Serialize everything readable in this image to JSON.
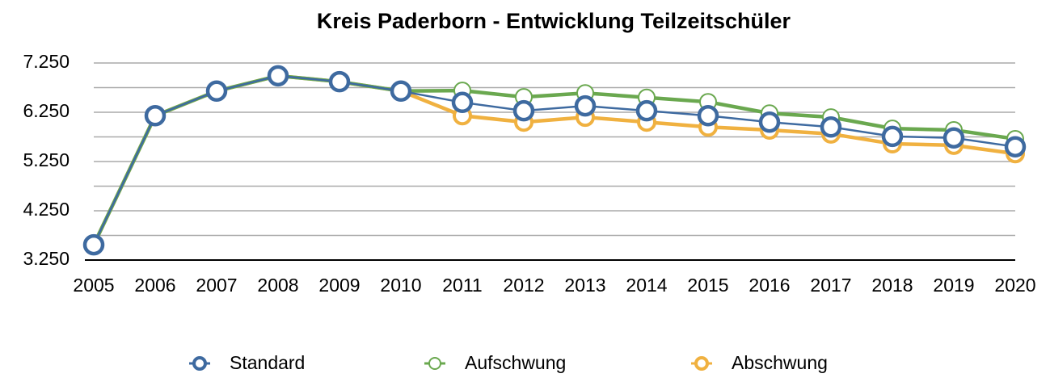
{
  "chart_data": {
    "type": "line",
    "title": "Kreis Paderborn - Entwicklung Teilzeitschüler",
    "categories": [
      "2005",
      "2006",
      "2007",
      "2008",
      "2009",
      "2010",
      "2011",
      "2012",
      "2013",
      "2014",
      "2015",
      "2016",
      "2017",
      "2018",
      "2019",
      "2020"
    ],
    "series": [
      {
        "name": "Abschwung",
        "color": "#f0b140",
        "values": [
          3560,
          6180,
          6680,
          6990,
          6870,
          6680,
          6180,
          6050,
          6150,
          6050,
          5950,
          5890,
          5810,
          5610,
          5580,
          5410
        ]
      },
      {
        "name": "Aufschwung",
        "color": "#6aa84f",
        "values": [
          3560,
          6180,
          6680,
          6990,
          6870,
          6680,
          6690,
          6560,
          6640,
          6550,
          6460,
          6230,
          6150,
          5920,
          5890,
          5710
        ]
      },
      {
        "name": "Standard",
        "color": "#3e6aa0",
        "values": [
          3560,
          6180,
          6680,
          6990,
          6870,
          6680,
          6450,
          6280,
          6380,
          6280,
          6180,
          6050,
          5950,
          5760,
          5730,
          5550
        ]
      }
    ],
    "legend_order": [
      "Standard",
      "Aufschwung",
      "Abschwung"
    ],
    "ylim": [
      3250,
      7250
    ],
    "yticks": [
      {
        "value": 3250,
        "label": "3.250"
      },
      {
        "value": 4250,
        "label": "4.250"
      },
      {
        "value": 5250,
        "label": "5.250"
      },
      {
        "value": 6250,
        "label": "6.250"
      },
      {
        "value": 7250,
        "label": "7.250"
      }
    ],
    "yminor": [
      3750,
      4750,
      5750,
      6750
    ],
    "grid": true,
    "legend": "bottom"
  }
}
